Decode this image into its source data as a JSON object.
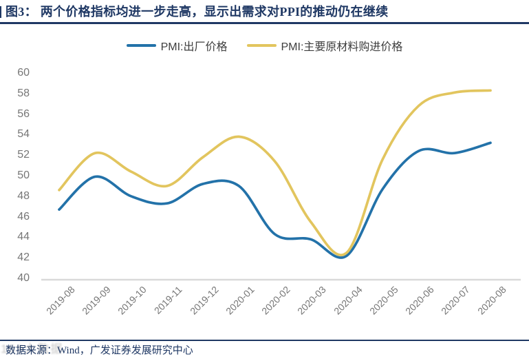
{
  "header": {
    "title": "图3： 两个价格指标均进一步走高，显示出需求对PPI的推动仍在继续"
  },
  "footer": {
    "source": "数据来源：Wind，广发证券发展研究中心",
    "watermark": "168大数据"
  },
  "colors": {
    "navy": "#1f3864",
    "blue_series": "#2372a9",
    "yellow_series": "#e2c55e",
    "tick_text": "#767676",
    "axis_line": "#d9d9d9",
    "legend_text": "#3d3d3d"
  },
  "chart_data": {
    "type": "line",
    "title": "",
    "x": [
      "2019-08",
      "2019-09",
      "2019-10",
      "2019-11",
      "2019-12",
      "2020-01",
      "2020-02",
      "2020-03",
      "2020-04",
      "2020-05",
      "2020-06",
      "2020-07",
      "2020-08"
    ],
    "series": [
      {
        "name": "PMI:出厂价格",
        "color": "#2372a9",
        "values": [
          46.7,
          49.9,
          48.0,
          47.3,
          49.2,
          49.0,
          44.3,
          43.8,
          42.2,
          48.7,
          52.4,
          52.2,
          53.2
        ]
      },
      {
        "name": "PMI:主要原材料购进价格",
        "color": "#e2c55e",
        "values": [
          48.6,
          52.2,
          50.4,
          49.0,
          51.8,
          53.8,
          51.4,
          45.5,
          42.5,
          51.6,
          56.8,
          58.1,
          58.3
        ]
      }
    ],
    "ylim": [
      40,
      60
    ],
    "yticks": [
      60,
      58,
      56,
      54,
      52,
      50,
      48,
      46,
      44,
      42,
      40
    ],
    "grid": false,
    "smooth": true,
    "legend_position": "top"
  }
}
